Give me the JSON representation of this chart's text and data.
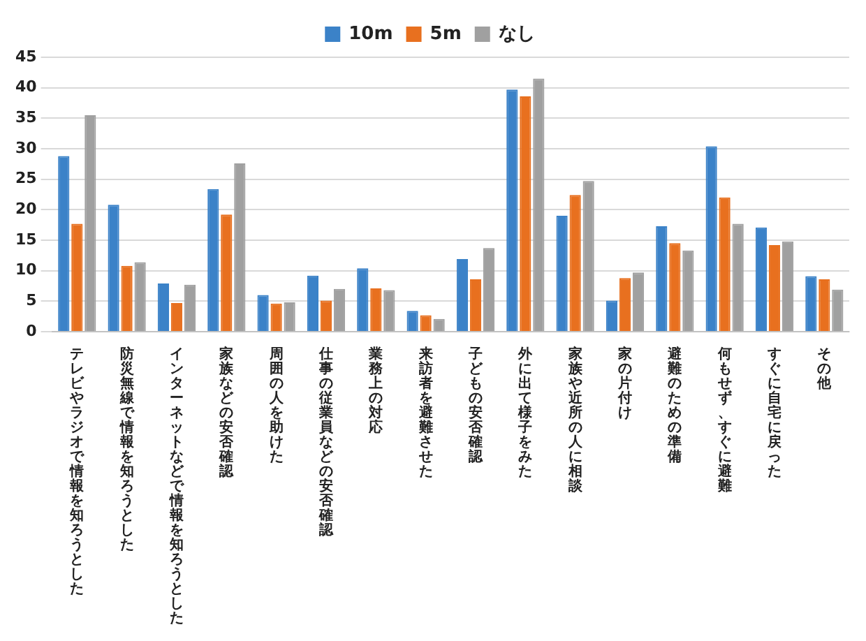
{
  "chart_data": {
    "type": "bar",
    "categories": [
      "テレビやラジオで情報を知ろうとした",
      "防災無線で情報を知ろうとした",
      "インターネットなどで情報を知ろうとした",
      "家族などの安否確認",
      "周囲の人を助けた",
      "仕事の従業員などの安否確認",
      "業務上の対応",
      "来訪者を避難させた",
      "子どもの安否確認",
      "外に出て様子をみた",
      "家族や近所の人に相談",
      "家の片付け",
      "避難のための準備",
      "何もせず、すぐに避難",
      "すぐに自宅に戻った",
      "その他"
    ],
    "series": [
      {
        "name": "10m",
        "color": "#3b82c8",
        "values": [
          28.8,
          20.8,
          7.9,
          23.4,
          6.0,
          9.2,
          10.4,
          3.4,
          11.9,
          39.7,
          19.0,
          5.1,
          17.3,
          30.4,
          17.1,
          9.1
        ]
      },
      {
        "name": "5m",
        "color": "#e8701f",
        "values": [
          17.7,
          10.8,
          4.7,
          19.2,
          4.6,
          5.1,
          7.1,
          2.7,
          8.6,
          38.6,
          22.4,
          8.8,
          14.5,
          22.0,
          14.2,
          8.6
        ]
      },
      {
        "name": "なし",
        "color": "#a0a0a0",
        "values": [
          35.5,
          11.4,
          7.7,
          27.6,
          4.8,
          7.0,
          6.8,
          2.1,
          13.7,
          41.5,
          24.7,
          9.7,
          13.3,
          17.7,
          14.8,
          6.9
        ]
      }
    ],
    "ylim": [
      0,
      45
    ],
    "yticks": [
      0,
      5,
      10,
      15,
      20,
      25,
      30,
      35,
      40,
      45
    ],
    "grid": "y",
    "legend": "top"
  }
}
